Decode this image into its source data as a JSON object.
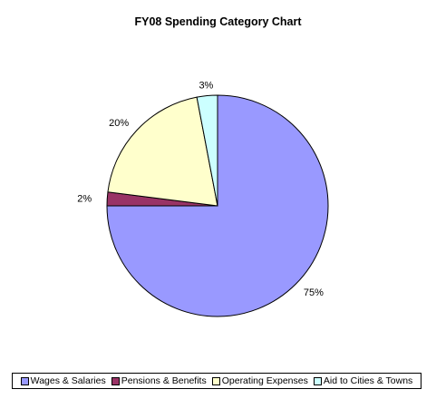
{
  "chart_data": {
    "type": "pie",
    "title": "FY08 Spending Category Chart",
    "categories": [
      "Wages & Salaries",
      "Pensions & Benefits",
      "Operating Expenses",
      "Aid to Cities & Towns"
    ],
    "values": [
      75,
      2,
      20,
      3
    ],
    "labels": [
      "75%",
      "2%",
      "20%",
      "3%"
    ],
    "colors": [
      "#9999ff",
      "#993366",
      "#ffffcc",
      "#ccffff"
    ],
    "legend_position": "bottom"
  }
}
